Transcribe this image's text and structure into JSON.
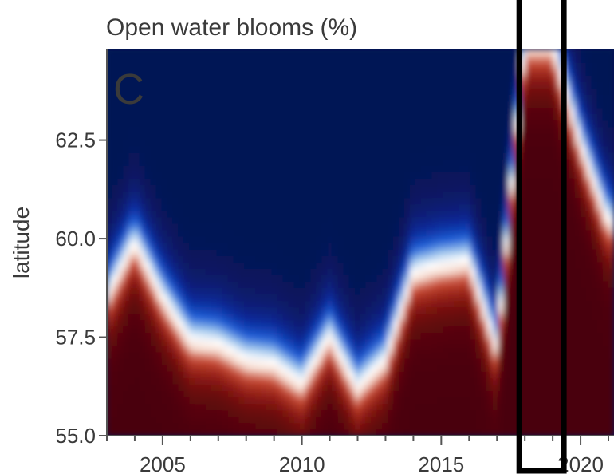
{
  "chart_data": {
    "type": "heatmap",
    "title": "Open water blooms (%)",
    "panel_label": "C",
    "xlabel": "",
    "ylabel": "latitude",
    "x_ticks": [
      2005,
      2010,
      2015,
      2020
    ],
    "y_ticks": [
      55.0,
      57.5,
      60.0,
      62.5
    ],
    "y_tick_labels": [
      "55.0",
      "57.5",
      "60.0",
      "62.5"
    ],
    "x_range": [
      2003,
      2021.2
    ],
    "y_range": [
      55.0,
      64.8
    ],
    "grid": false,
    "legend": "none",
    "colormap": [
      "#4a0008",
      "#8c1a14",
      "#c84a34",
      "#f6dcd0",
      "#ffffff",
      "#9cc4ec",
      "#2060d8",
      "#0c2a9a",
      "#061454"
    ],
    "colormap_note": "0 → dark red, 50 → white, 100 → dark navy",
    "value_range": [
      0,
      100
    ],
    "years": [
      2003,
      2004,
      2005,
      2006,
      2007,
      2008,
      2009,
      2010,
      2011,
      2012,
      2013,
      2014,
      2015,
      2016,
      2017,
      2018,
      2019,
      2020,
      2021
    ],
    "bloom_boundary_latitude": [
      58.6,
      60.0,
      58.6,
      57.5,
      57.4,
      57.0,
      56.9,
      56.4,
      57.6,
      56.3,
      57.0,
      59.2,
      59.4,
      59.5,
      57.3,
      65.0,
      65.0,
      62.5,
      60.5
    ],
    "highlight_box_years": [
      2017.8,
      2019.4
    ]
  }
}
